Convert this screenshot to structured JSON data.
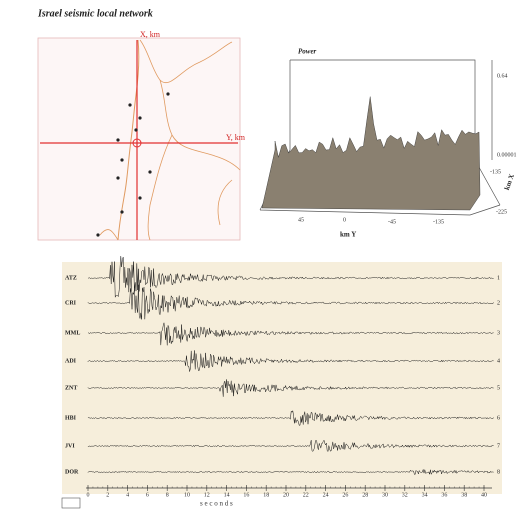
{
  "header": {
    "title": "Israel seismic local network"
  },
  "map": {
    "x_label": "X, km",
    "y_label": "Y, km"
  },
  "surface": {
    "z_label": "Power",
    "z_ticks": [
      "0.64",
      "0.00001"
    ],
    "y_label": "km Y",
    "x_label": "km X",
    "y_ticks": [
      "45",
      "0",
      "-45",
      "-135"
    ],
    "x_ticks": [
      "-135",
      "-225"
    ]
  },
  "seismogram": {
    "stations": [
      "ATZ",
      "CRI",
      "MML",
      "ADI",
      "ZNT",
      "HBI",
      "JVI",
      "DOR"
    ],
    "trace_numbers": [
      1,
      2,
      3,
      4,
      5,
      6,
      7,
      8
    ],
    "time_ticks": [
      0,
      2,
      4,
      6,
      8,
      10,
      12,
      14,
      16,
      18,
      20,
      22,
      24,
      26,
      28,
      30,
      32,
      34,
      36,
      38,
      40
    ],
    "time_label": "s e c o n d s"
  }
}
